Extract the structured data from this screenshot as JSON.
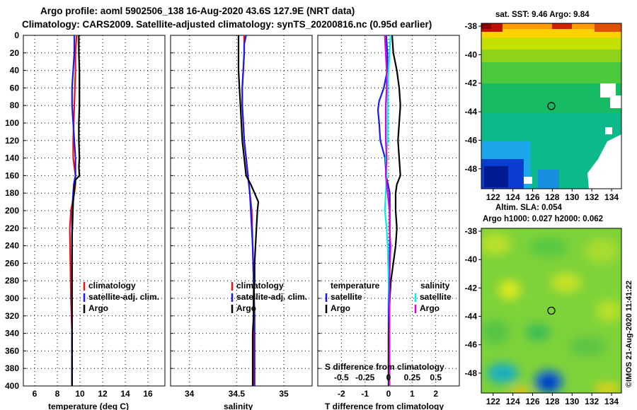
{
  "header": {
    "line1": "Argo profile: aoml 5902506_138 16-Aug-2020 43.6S 127.9E (NRT data)",
    "line2": "Climatology: CARS2009. Satellite-adjusted climatology: synTS_20200816.nc (0.95d earlier)"
  },
  "depth_ticks": [
    "0",
    "20",
    "40",
    "60",
    "80",
    "100",
    "120",
    "140",
    "160",
    "180",
    "200",
    "220",
    "240",
    "260",
    "280",
    "300",
    "320",
    "340",
    "360",
    "380",
    "400"
  ],
  "colors": {
    "climatology": "#ee1111",
    "satellite": "#1a1aee",
    "argo": "#000000",
    "sat_sal": "#00eeee",
    "argo_sal": "#dd00dd",
    "grid": "#000000"
  },
  "chart_data": [
    {
      "id": "temperature",
      "type": "line",
      "xlabel": "temperature (deg C)",
      "ylabel": "",
      "xlim": [
        5,
        17.5
      ],
      "ylim": [
        400,
        0
      ],
      "xticks": [
        6,
        8,
        10,
        12,
        14,
        16
      ],
      "xtick_labels": [
        "6",
        "8",
        "10",
        "12",
        "14",
        "16"
      ],
      "legend": [
        "climatology",
        "satellite-adj. clim.",
        "Argo"
      ],
      "series": [
        {
          "name": "climatology",
          "color": "#ee1111",
          "depth": [
            0,
            20,
            40,
            60,
            80,
            100,
            120,
            140,
            160,
            170,
            180,
            200,
            220,
            260,
            300,
            340,
            400
          ],
          "values": [
            9.7,
            9.6,
            9.6,
            9.55,
            9.5,
            9.45,
            9.4,
            9.4,
            9.6,
            9.6,
            9.5,
            9.2,
            9.1,
            9.15,
            9.2,
            9.3,
            9.3
          ]
        },
        {
          "name": "satellite-adj. clim.",
          "color": "#1a1aee",
          "depth": [
            0,
            20,
            40,
            60,
            80,
            100,
            120,
            140,
            160,
            170,
            180,
            200,
            220,
            260,
            300,
            340,
            400
          ],
          "values": [
            9.5,
            9.5,
            9.4,
            9.3,
            9.3,
            9.4,
            9.5,
            9.6,
            9.6,
            9.45,
            9.4,
            9.3,
            9.3,
            9.3,
            9.3,
            9.3,
            9.3
          ]
        },
        {
          "name": "Argo",
          "color": "#000000",
          "depth": [
            0,
            20,
            40,
            60,
            80,
            100,
            120,
            140,
            150,
            160,
            165,
            175,
            190,
            210,
            230,
            260,
            300,
            340,
            400
          ],
          "values": [
            9.9,
            9.9,
            9.95,
            9.95,
            9.95,
            9.9,
            9.9,
            9.95,
            9.9,
            9.95,
            9.6,
            9.5,
            9.4,
            9.35,
            9.3,
            9.3,
            9.3,
            9.3,
            9.3
          ]
        }
      ]
    },
    {
      "id": "salinity",
      "type": "line",
      "xlabel": "salinity",
      "ylabel": "",
      "xlim": [
        33.8,
        35.3
      ],
      "ylim": [
        400,
        0
      ],
      "xticks": [
        34,
        34.5,
        35
      ],
      "xtick_labels": [
        "34",
        "34.5",
        "35"
      ],
      "legend": [
        "climatology",
        "satellite-adj. clim.",
        "Argo"
      ],
      "series": [
        {
          "name": "climatology",
          "color": "#ee1111",
          "depth": [
            0,
            20,
            40,
            60,
            80,
            100,
            120,
            140,
            160,
            180,
            200,
            240,
            280,
            320,
            360,
            400
          ],
          "values": [
            34.58,
            34.58,
            34.57,
            34.56,
            34.56,
            34.57,
            34.58,
            34.6,
            34.62,
            34.64,
            34.66,
            34.67,
            34.68,
            34.68,
            34.68,
            34.68
          ]
        },
        {
          "name": "satellite-adj. clim.",
          "color": "#1a1aee",
          "depth": [
            0,
            10,
            20,
            40,
            60,
            80,
            100,
            120,
            140,
            160,
            180,
            200,
            240,
            280,
            320,
            360,
            400
          ],
          "values": [
            34.6,
            34.58,
            34.58,
            34.57,
            34.56,
            34.56,
            34.57,
            34.58,
            34.6,
            34.62,
            34.64,
            34.65,
            34.67,
            34.68,
            34.69,
            34.69,
            34.69
          ]
        },
        {
          "name": "Argo",
          "color": "#000000",
          "depth": [
            0,
            40,
            60,
            80,
            100,
            120,
            140,
            160,
            170,
            180,
            190,
            200,
            220,
            240,
            260,
            280,
            300,
            320,
            340,
            360,
            400
          ],
          "values": [
            34.52,
            34.52,
            34.53,
            34.54,
            34.55,
            34.56,
            34.58,
            34.6,
            34.65,
            34.69,
            34.73,
            34.72,
            34.71,
            34.7,
            34.69,
            34.69,
            34.68,
            34.68,
            34.67,
            34.67,
            34.67
          ]
        }
      ]
    },
    {
      "id": "difference",
      "type": "line",
      "xlabel": "T difference from climatology",
      "top_axis_label": "S difference from climatology",
      "ylabel": "",
      "xlim": [
        -3,
        3
      ],
      "ylim": [
        400,
        0
      ],
      "xticks": [
        -2,
        -1,
        0,
        1,
        2
      ],
      "xtick_labels": [
        "-2",
        "-1",
        "0",
        "1",
        "2"
      ],
      "s_xticks": [
        -0.5,
        -0.25,
        0,
        0.25,
        0.5
      ],
      "s_xtick_labels": [
        "-0.5",
        "-0.25",
        "0",
        "0.25",
        "0.5"
      ],
      "legend_titles": [
        "temperature",
        "salinity"
      ],
      "legend": [
        "satellite",
        "Argo",
        "satellite",
        "Argo"
      ],
      "series": [
        {
          "name": "temperature satellite",
          "color": "#1a1aee",
          "depth": [
            0,
            20,
            40,
            60,
            75,
            85,
            100,
            120,
            140,
            160,
            180,
            200,
            240,
            300,
            360,
            400
          ],
          "values": [
            -0.1,
            -0.05,
            -0.05,
            -0.2,
            -0.4,
            -0.45,
            -0.4,
            -0.35,
            -0.15,
            -0.1,
            0.05,
            0.05,
            0.05,
            0,
            0,
            0
          ]
        },
        {
          "name": "temperature Argo",
          "color": "#000000",
          "depth": [
            0,
            20,
            40,
            60,
            80,
            100,
            120,
            140,
            160,
            170,
            180,
            200,
            220,
            240,
            260,
            280,
            300,
            340,
            400
          ],
          "values": [
            0.15,
            0.2,
            0.35,
            0.45,
            0.5,
            0.45,
            0.4,
            0.45,
            0.5,
            0.35,
            0.3,
            0.3,
            0.35,
            0.3,
            0.2,
            0.1,
            0.05,
            0,
            0
          ]
        },
        {
          "name": "salinity satellite",
          "color": "#00eeee",
          "depth": [
            0,
            20,
            40,
            60,
            80,
            100,
            120,
            140,
            160,
            180,
            200,
            220,
            240,
            280,
            320,
            360,
            400
          ],
          "values": [
            0.02,
            0.01,
            0.0,
            -0.01,
            -0.01,
            -0.01,
            -0.01,
            -0.03,
            -0.02,
            -0.03,
            -0.04,
            -0.02,
            -0.01,
            0,
            0.01,
            0.01,
            0.01
          ]
        },
        {
          "name": "salinity Argo",
          "color": "#dd00dd",
          "depth": [
            0,
            20,
            40,
            60,
            80,
            100,
            120,
            140,
            160,
            180,
            200,
            220,
            240,
            280,
            320,
            360,
            400
          ],
          "values": [
            -0.04,
            -0.03,
            -0.02,
            -0.02,
            -0.03,
            -0.03,
            -0.03,
            -0.02,
            -0.03,
            -0.01,
            0.01,
            0.01,
            0.02,
            0.01,
            0.01,
            0.01,
            0.01
          ]
        }
      ]
    },
    {
      "id": "sst_map",
      "type": "heatmap",
      "title": "sat. SST: 9.46 Argo: 9.84",
      "xticks": [
        122,
        124,
        126,
        128,
        130,
        132,
        134
      ],
      "xtick_labels": [
        "122",
        "124",
        "126",
        "128",
        "130",
        "132",
        "134"
      ],
      "yticks": [
        -38,
        -40,
        -42,
        -44,
        -46,
        -48
      ],
      "ytick_labels": [
        "-38",
        "-40",
        "-42",
        "-44",
        "-46",
        "-48"
      ],
      "xlim": [
        120.8,
        135.0
      ],
      "ylim": [
        -49.4,
        -37.8
      ],
      "marker": {
        "lon": 127.9,
        "lat": -43.6
      }
    },
    {
      "id": "sla_map",
      "type": "heatmap",
      "title_line1": "Altim. SLA: 0.054",
      "title_line2": "Argo h1000: 0.027 h2000: 0.062",
      "xticks": [
        122,
        124,
        126,
        128,
        130,
        132,
        134
      ],
      "xtick_labels": [
        "122",
        "124",
        "126",
        "128",
        "130",
        "132",
        "134"
      ],
      "yticks": [
        -38,
        -40,
        -42,
        -44,
        -46,
        -48
      ],
      "ytick_labels": [
        "-38",
        "-40",
        "-42",
        "-44",
        "-46",
        "-48"
      ],
      "xlim": [
        120.8,
        135.0
      ],
      "ylim": [
        -49.4,
        -37.8
      ],
      "marker": {
        "lon": 127.9,
        "lat": -43.6
      }
    }
  ],
  "credit": "©IMOS 21-Aug-2020 11:41:22"
}
